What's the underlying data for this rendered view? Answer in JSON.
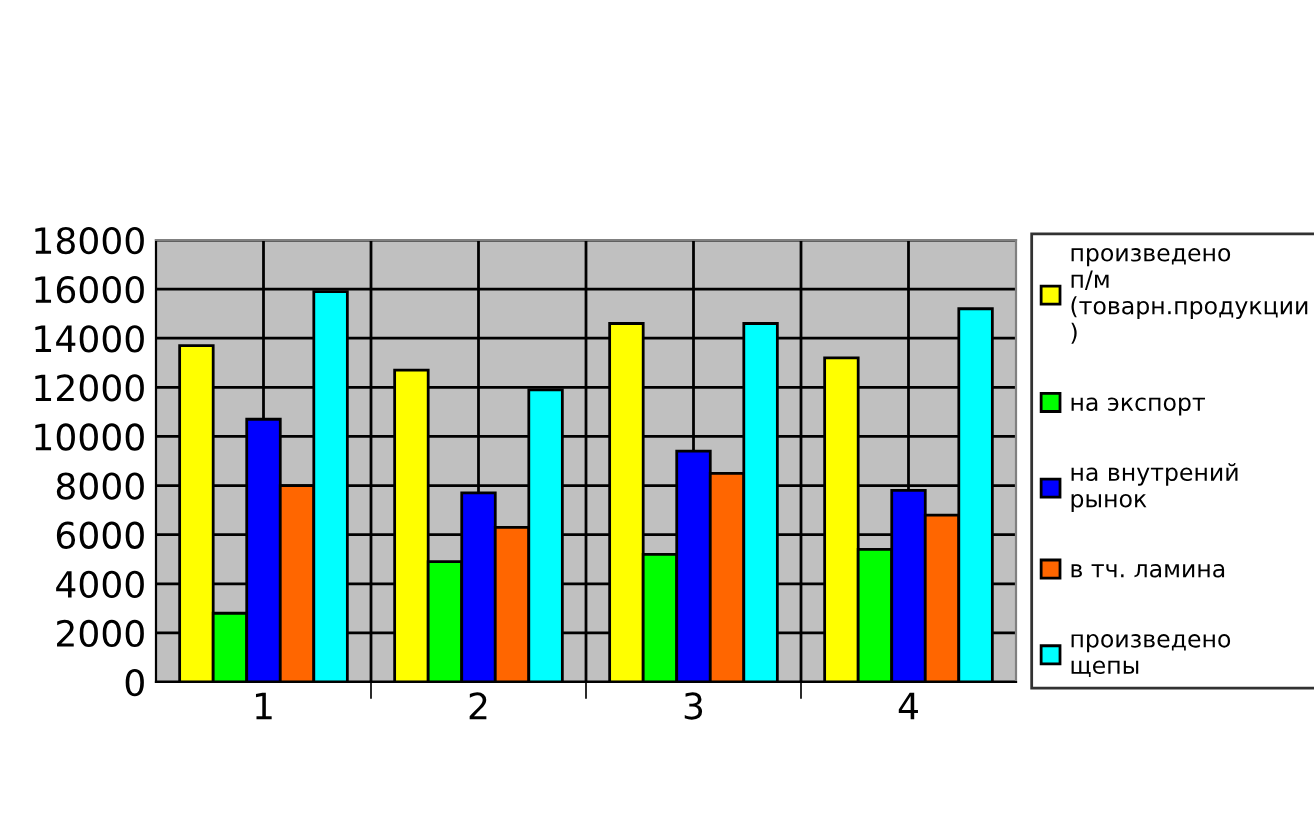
{
  "chart_data": {
    "type": "bar",
    "categories": [
      "1",
      "2",
      "3",
      "4"
    ],
    "series": [
      {
        "name": "произведено п/м (товарн.продукции )",
        "color": "#ffff00",
        "values": [
          13700,
          12700,
          14600,
          13200
        ]
      },
      {
        "name": "на экспорт",
        "color": "#00ff00",
        "values": [
          2800,
          4900,
          5200,
          5400
        ]
      },
      {
        "name": "на внутрений рынок",
        "color": "#0000ff",
        "values": [
          10700,
          7700,
          9400,
          7800
        ]
      },
      {
        "name": "в тч. ламина",
        "color": "#ff6600",
        "values": [
          8000,
          6300,
          8500,
          6800
        ]
      },
      {
        "name": "произведено щепы",
        "color": "#00ffff",
        "values": [
          15900,
          11900,
          14600,
          15200
        ]
      }
    ],
    "ylim": [
      0,
      18000
    ],
    "yticks": [
      0,
      2000,
      4000,
      6000,
      8000,
      10000,
      12000,
      14000,
      16000,
      18000
    ],
    "grid": true,
    "legend": "right"
  }
}
